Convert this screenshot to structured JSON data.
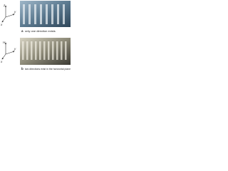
{
  "panels": [
    {
      "label": "a",
      "caption": "only one direction exists",
      "axes": [
        "z",
        "y",
        "x"
      ]
    },
    {
      "label": "b",
      "caption": "two directions exist in the horizontal plane",
      "axes": [
        "H",
        "y",
        "x"
      ]
    }
  ]
}
